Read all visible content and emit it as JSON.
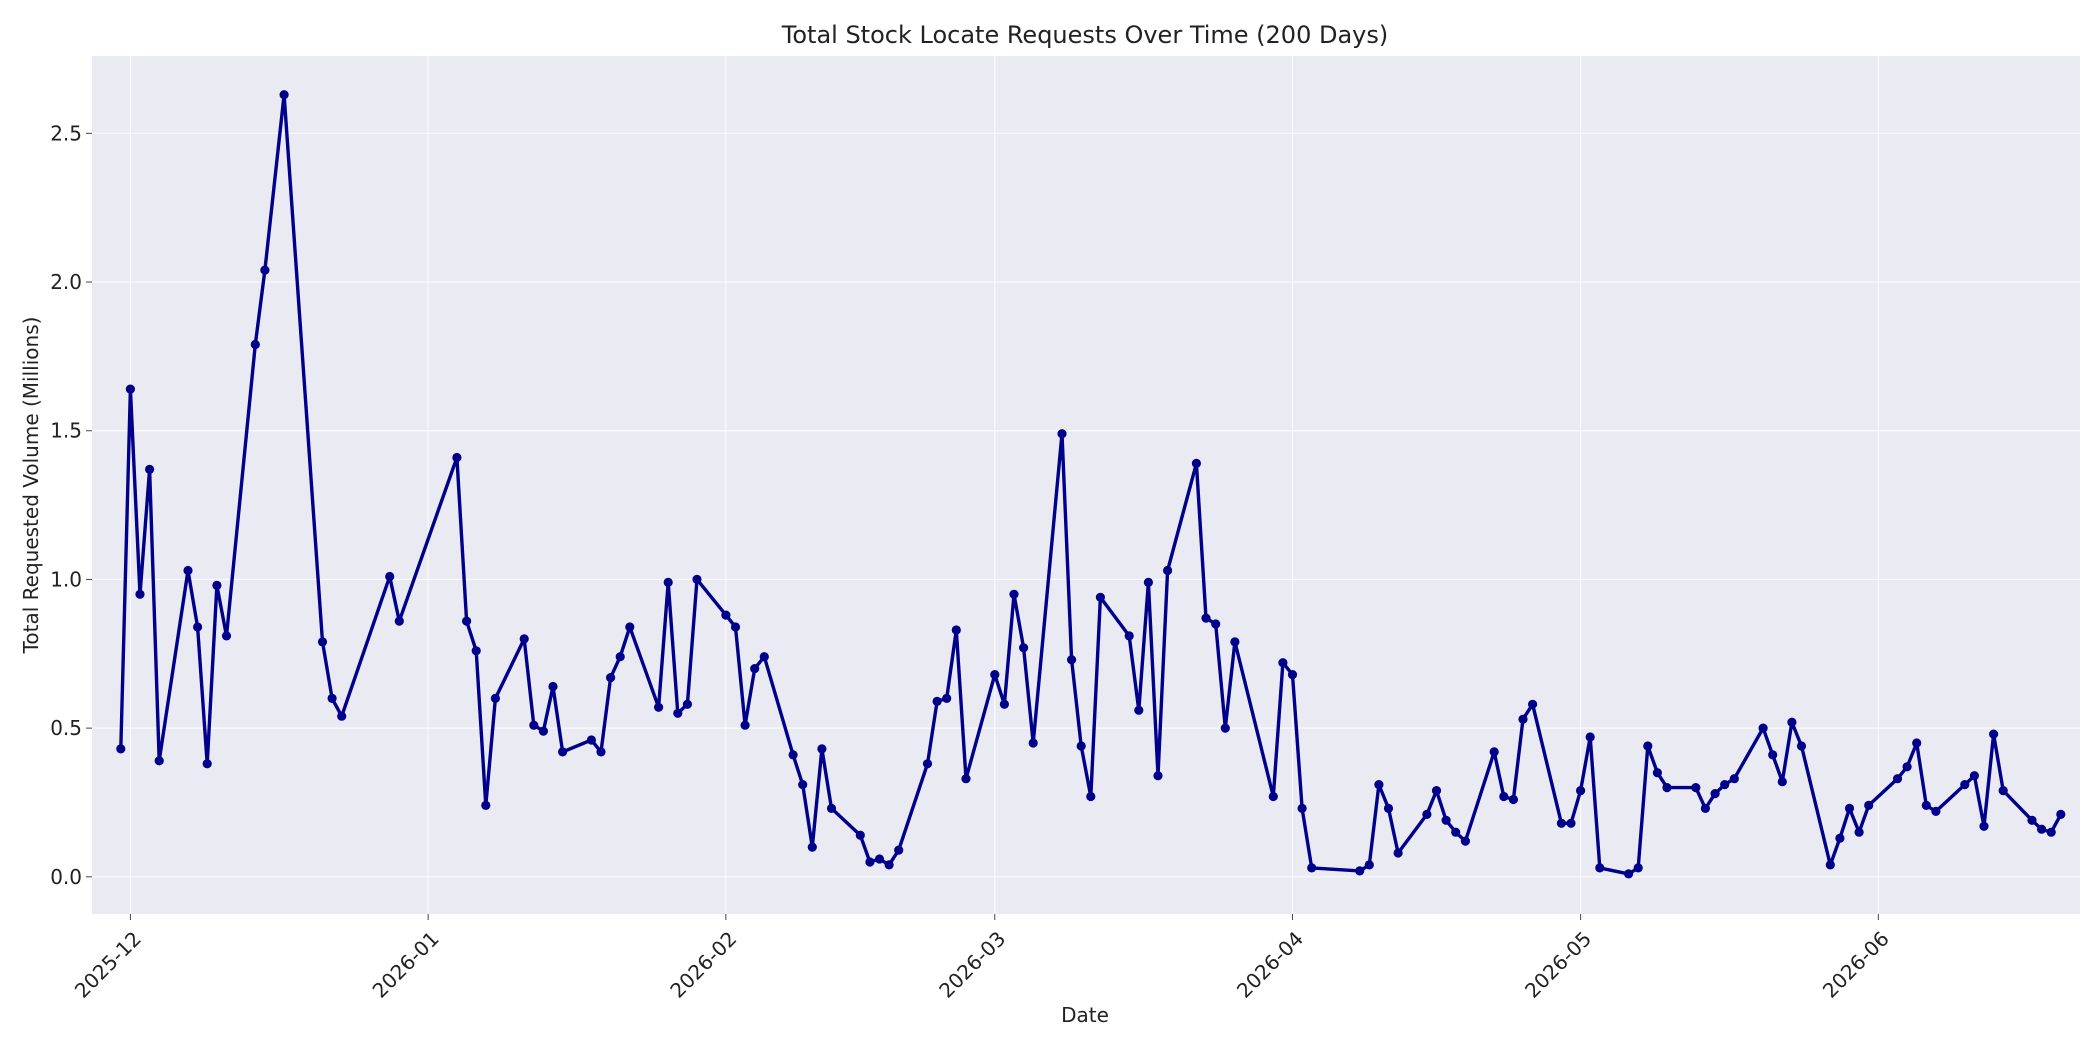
{
  "chart_data": {
    "type": "line",
    "title": "Total Stock Locate Requests Over Time (200 Days)",
    "xlabel": "Date",
    "ylabel": "Total Requested Volume (Millions)",
    "x_range": [
      "2025-11-27",
      "2026-06-22"
    ],
    "ylim": [
      -0.125,
      2.76
    ],
    "grid": true,
    "legend": "none",
    "x_ticks": [
      "2025-12",
      "2026-01",
      "2026-02",
      "2026-03",
      "2026-04",
      "2026-05",
      "2026-06"
    ],
    "y_ticks": [
      "0.0",
      "0.5",
      "1.0",
      "1.5",
      "2.0",
      "2.5"
    ],
    "colors": {
      "background": "#eaeaf2",
      "line": "#00008b"
    },
    "series": [
      {
        "points": [
          [
            "2025-11-30",
            0.43
          ],
          [
            "2025-12-01",
            1.64
          ],
          [
            "2025-12-02",
            0.95
          ],
          [
            "2025-12-03",
            1.37
          ],
          [
            "2025-12-04",
            0.39
          ],
          [
            "2025-12-07",
            1.03
          ],
          [
            "2025-12-08",
            0.84
          ],
          [
            "2025-12-09",
            0.38
          ],
          [
            "2025-12-10",
            0.98
          ],
          [
            "2025-12-11",
            0.81
          ],
          [
            "2025-12-14",
            1.79
          ],
          [
            "2025-12-15",
            2.04
          ],
          [
            "2025-12-17",
            2.63
          ],
          [
            "2025-12-21",
            0.79
          ],
          [
            "2025-12-22",
            0.6
          ],
          [
            "2025-12-23",
            0.54
          ],
          [
            "2025-12-28",
            1.01
          ],
          [
            "2025-12-29",
            0.86
          ],
          [
            "2026-01-04",
            1.41
          ],
          [
            "2026-01-05",
            0.86
          ],
          [
            "2026-01-06",
            0.76
          ],
          [
            "2026-01-07",
            0.24
          ],
          [
            "2026-01-08",
            0.6
          ],
          [
            "2026-01-11",
            0.8
          ],
          [
            "2026-01-12",
            0.51
          ],
          [
            "2026-01-13",
            0.49
          ],
          [
            "2026-01-14",
            0.64
          ],
          [
            "2026-01-15",
            0.42
          ],
          [
            "2026-01-18",
            0.46
          ],
          [
            "2026-01-19",
            0.42
          ],
          [
            "2026-01-20",
            0.67
          ],
          [
            "2026-01-21",
            0.74
          ],
          [
            "2026-01-22",
            0.84
          ],
          [
            "2026-01-25",
            0.57
          ],
          [
            "2026-01-26",
            0.99
          ],
          [
            "2026-01-27",
            0.55
          ],
          [
            "2026-01-28",
            0.58
          ],
          [
            "2026-01-29",
            1.0
          ],
          [
            "2026-02-01",
            0.88
          ],
          [
            "2026-02-02",
            0.84
          ],
          [
            "2026-02-03",
            0.51
          ],
          [
            "2026-02-04",
            0.7
          ],
          [
            "2026-02-05",
            0.74
          ],
          [
            "2026-02-08",
            0.41
          ],
          [
            "2026-02-09",
            0.31
          ],
          [
            "2026-02-10",
            0.1
          ],
          [
            "2026-02-11",
            0.43
          ],
          [
            "2026-02-12",
            0.23
          ],
          [
            "2026-02-15",
            0.14
          ],
          [
            "2026-02-16",
            0.05
          ],
          [
            "2026-02-17",
            0.06
          ],
          [
            "2026-02-18",
            0.04
          ],
          [
            "2026-02-19",
            0.09
          ],
          [
            "2026-02-22",
            0.38
          ],
          [
            "2026-02-23",
            0.59
          ],
          [
            "2026-02-24",
            0.6
          ],
          [
            "2026-02-25",
            0.83
          ],
          [
            "2026-02-26",
            0.33
          ],
          [
            "2026-03-01",
            0.68
          ],
          [
            "2026-03-02",
            0.58
          ],
          [
            "2026-03-03",
            0.95
          ],
          [
            "2026-03-04",
            0.77
          ],
          [
            "2026-03-05",
            0.45
          ],
          [
            "2026-03-08",
            1.49
          ],
          [
            "2026-03-09",
            0.73
          ],
          [
            "2026-03-10",
            0.44
          ],
          [
            "2026-03-11",
            0.27
          ],
          [
            "2026-03-12",
            0.94
          ],
          [
            "2026-03-15",
            0.81
          ],
          [
            "2026-03-16",
            0.56
          ],
          [
            "2026-03-17",
            0.99
          ],
          [
            "2026-03-18",
            0.34
          ],
          [
            "2026-03-19",
            1.03
          ],
          [
            "2026-03-22",
            1.39
          ],
          [
            "2026-03-23",
            0.87
          ],
          [
            "2026-03-24",
            0.85
          ],
          [
            "2026-03-25",
            0.5
          ],
          [
            "2026-03-26",
            0.79
          ],
          [
            "2026-03-30",
            0.27
          ],
          [
            "2026-03-31",
            0.72
          ],
          [
            "2026-04-01",
            0.68
          ],
          [
            "2026-04-02",
            0.23
          ],
          [
            "2026-04-03",
            0.03
          ],
          [
            "2026-04-08",
            0.02
          ],
          [
            "2026-04-09",
            0.04
          ],
          [
            "2026-04-10",
            0.31
          ],
          [
            "2026-04-11",
            0.23
          ],
          [
            "2026-04-12",
            0.08
          ],
          [
            "2026-04-15",
            0.21
          ],
          [
            "2026-04-16",
            0.29
          ],
          [
            "2026-04-17",
            0.19
          ],
          [
            "2026-04-18",
            0.15
          ],
          [
            "2026-04-19",
            0.12
          ],
          [
            "2026-04-22",
            0.42
          ],
          [
            "2026-04-23",
            0.27
          ],
          [
            "2026-04-24",
            0.26
          ],
          [
            "2026-04-25",
            0.53
          ],
          [
            "2026-04-26",
            0.58
          ],
          [
            "2026-04-29",
            0.18
          ],
          [
            "2026-04-30",
            0.18
          ],
          [
            "2026-05-01",
            0.29
          ],
          [
            "2026-05-02",
            0.47
          ],
          [
            "2026-05-03",
            0.03
          ],
          [
            "2026-05-06",
            0.01
          ],
          [
            "2026-05-07",
            0.03
          ],
          [
            "2026-05-08",
            0.44
          ],
          [
            "2026-05-09",
            0.35
          ],
          [
            "2026-05-10",
            0.3
          ],
          [
            "2026-05-13",
            0.3
          ],
          [
            "2026-05-14",
            0.23
          ],
          [
            "2026-05-15",
            0.28
          ],
          [
            "2026-05-16",
            0.31
          ],
          [
            "2026-05-17",
            0.33
          ],
          [
            "2026-05-20",
            0.5
          ],
          [
            "2026-05-21",
            0.41
          ],
          [
            "2026-05-22",
            0.32
          ],
          [
            "2026-05-23",
            0.52
          ],
          [
            "2026-05-24",
            0.44
          ],
          [
            "2026-05-27",
            0.04
          ],
          [
            "2026-05-28",
            0.13
          ],
          [
            "2026-05-29",
            0.23
          ],
          [
            "2026-05-30",
            0.15
          ],
          [
            "2026-05-31",
            0.24
          ],
          [
            "2026-06-03",
            0.33
          ],
          [
            "2026-06-04",
            0.37
          ],
          [
            "2026-06-05",
            0.45
          ],
          [
            "2026-06-06",
            0.24
          ],
          [
            "2026-06-07",
            0.22
          ],
          [
            "2026-06-10",
            0.31
          ],
          [
            "2026-06-11",
            0.34
          ],
          [
            "2026-06-12",
            0.17
          ],
          [
            "2026-06-13",
            0.48
          ],
          [
            "2026-06-14",
            0.29
          ],
          [
            "2026-06-17",
            0.19
          ],
          [
            "2026-06-18",
            0.16
          ],
          [
            "2026-06-19",
            0.15
          ],
          [
            "2026-06-20",
            0.21
          ]
        ]
      }
    ]
  }
}
